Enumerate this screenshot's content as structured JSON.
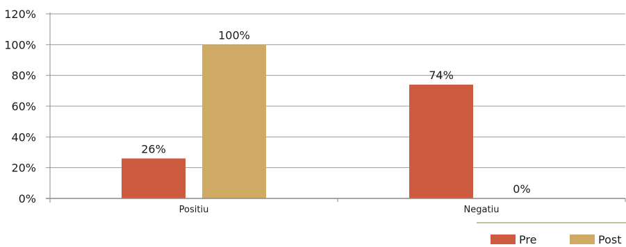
{
  "chart_data": {
    "type": "bar",
    "categories": [
      "Positiu",
      "Negatiu"
    ],
    "series": [
      {
        "name": "Pre",
        "values": [
          26,
          74
        ],
        "color": "#cd5b3f"
      },
      {
        "name": "Post",
        "values": [
          100,
          0
        ],
        "color": "#cfaa65"
      }
    ],
    "data_labels": [
      [
        "26%",
        "74%"
      ],
      [
        "100%",
        "0%"
      ]
    ],
    "y_ticks": [
      {
        "value": 0,
        "label": "0%"
      },
      {
        "value": 20,
        "label": "20%"
      },
      {
        "value": 40,
        "label": "40%"
      },
      {
        "value": 60,
        "label": "60%"
      },
      {
        "value": 80,
        "label": "80%"
      },
      {
        "value": 100,
        "label": "100%"
      },
      {
        "value": 120,
        "label": "120%"
      }
    ],
    "ylim": [
      0,
      120
    ],
    "grid": true,
    "legend_position": "bottom-right",
    "legend_line_color": "#6b8e3e",
    "title": "",
    "xlabel": "",
    "ylabel": ""
  }
}
